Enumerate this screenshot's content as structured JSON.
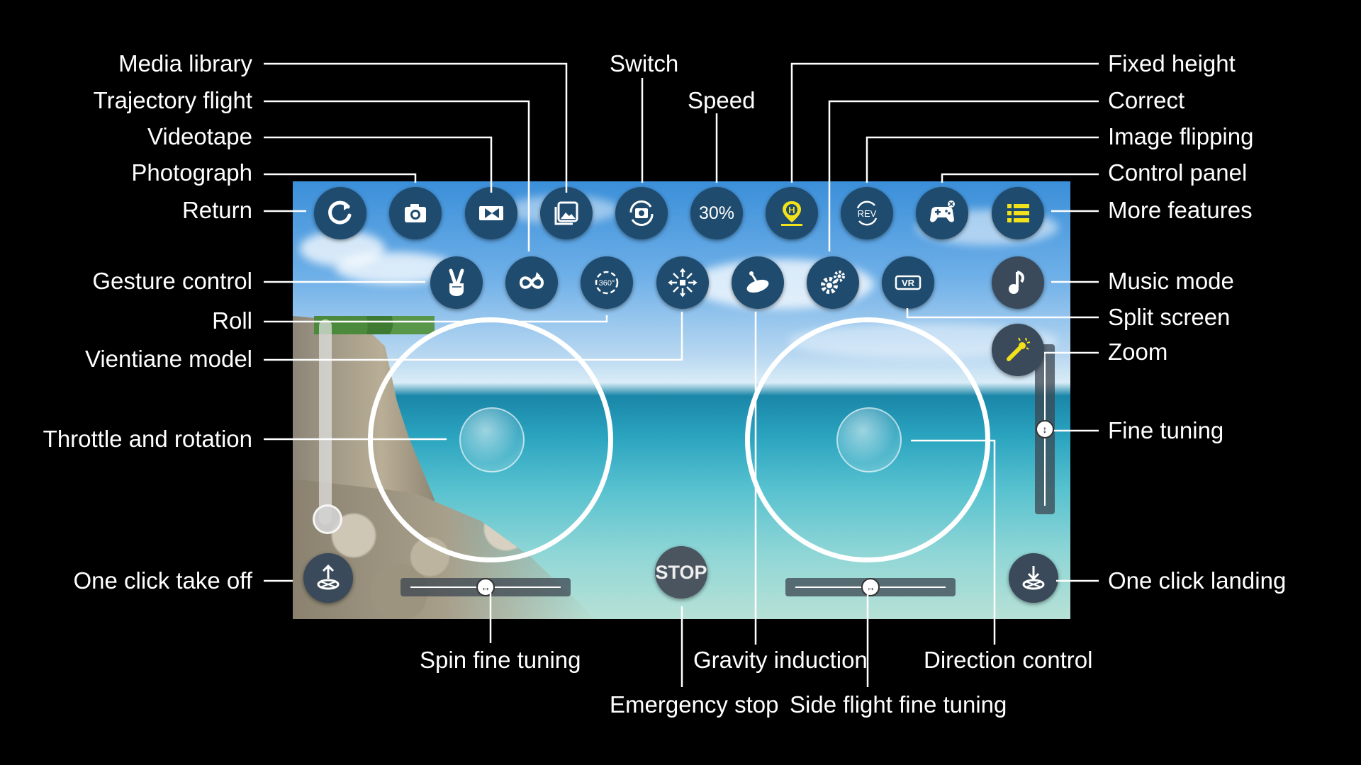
{
  "screen": {
    "top_row": [
      {
        "id": "return",
        "icon": "return-icon"
      },
      {
        "id": "photograph",
        "icon": "camera-icon"
      },
      {
        "id": "videotape",
        "icon": "video-icon"
      },
      {
        "id": "media-library",
        "icon": "gallery-icon"
      },
      {
        "id": "switch",
        "icon": "switch-camera-icon"
      },
      {
        "id": "speed",
        "icon": "speed-text",
        "text": "30%"
      },
      {
        "id": "fixed-height",
        "icon": "fixed-height-icon",
        "text": "H"
      },
      {
        "id": "image-flipping",
        "icon": "rev-icon",
        "text": "REV"
      },
      {
        "id": "control-panel",
        "icon": "gamepad-icon"
      },
      {
        "id": "more-features",
        "icon": "list-icon"
      }
    ],
    "second_row": [
      {
        "id": "gesture-control",
        "icon": "peace-hand-icon"
      },
      {
        "id": "trajectory-flight",
        "icon": "trajectory-icon"
      },
      {
        "id": "roll",
        "icon": "roll-360-icon",
        "text": "360°"
      },
      {
        "id": "vientiane-model",
        "icon": "vientiane-icon"
      },
      {
        "id": "gravity-induction",
        "icon": "gravity-icon"
      },
      {
        "id": "correct",
        "icon": "gears-icon"
      },
      {
        "id": "split-screen",
        "icon": "vr-icon",
        "text": "VR"
      },
      {
        "id": "music-mode",
        "icon": "music-note-icon"
      }
    ],
    "zoom": {
      "icon": "zoom-wand-icon"
    },
    "stop": {
      "text": "STOP"
    },
    "takeoff": {
      "icon": "takeoff-icon"
    },
    "landing": {
      "icon": "landing-icon"
    }
  },
  "labels": {
    "media_library": "Media library",
    "trajectory_flight": "Trajectory flight",
    "videotape": "Videotape",
    "photograph": "Photograph",
    "return": "Return",
    "gesture_control": "Gesture control",
    "roll": "Roll",
    "vientiane_model": "Vientiane model",
    "throttle_rotation": "Throttle and rotation",
    "one_click_takeoff": "One click take off",
    "switch": "Switch",
    "speed": "Speed",
    "fixed_height": "Fixed height",
    "correct": "Correct",
    "image_flipping": "Image flipping",
    "control_panel": "Control panel",
    "more_features": "More features",
    "music_mode": "Music mode",
    "split_screen": "Split screen",
    "zoom": "Zoom",
    "fine_tuning": "Fine tuning",
    "one_click_landing": "One click landing",
    "spin_fine_tuning": "Spin fine tuning",
    "gravity_induction": "Gravity induction",
    "direction_control": "Direction control",
    "emergency_stop": "Emergency stop",
    "side_flight_fine_tuning": "Side flight fine tuning"
  },
  "colors": {
    "button_bg": "#1f4b6e",
    "accent_yellow": "#f2e21b",
    "label": "#ffffff",
    "background": "#000000"
  }
}
